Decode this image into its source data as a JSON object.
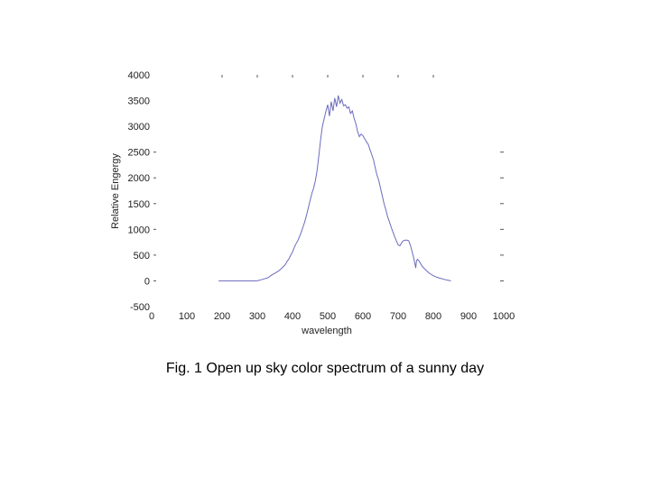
{
  "chart_data": {
    "type": "line",
    "xlabel": "wavelength",
    "ylabel": "Relative Engergy",
    "xlim": [
      0,
      1000
    ],
    "ylim": [
      -500,
      4000
    ],
    "xticks": [
      "0",
      "100",
      "200",
      "300",
      "400",
      "500",
      "600",
      "700",
      "800",
      "900",
      "1000"
    ],
    "yticks": [
      "-500",
      "0",
      "500",
      "1000",
      "1500",
      "2000",
      "2500",
      "3000",
      "3500",
      "4000"
    ],
    "grid": false,
    "line_color": "#6b6bbf",
    "series": [
      {
        "x": [
          190,
          200,
          220,
          250,
          270,
          280,
          290,
          300,
          310,
          320,
          330,
          340,
          350,
          360,
          370,
          380,
          385,
          390,
          395,
          400,
          405,
          410,
          415,
          420,
          425,
          430,
          435,
          440,
          445,
          450,
          455,
          460,
          465,
          470,
          475,
          480,
          485,
          490,
          495,
          500,
          505,
          510,
          515,
          520,
          525,
          530,
          535,
          540,
          545,
          550,
          555,
          560,
          565,
          570,
          575,
          580,
          585,
          590,
          595,
          600,
          605,
          610,
          615,
          620,
          625,
          630,
          635,
          640,
          645,
          650,
          655,
          660,
          665,
          670,
          675,
          680,
          685,
          690,
          695,
          700,
          705,
          710,
          715,
          720,
          725,
          730,
          735,
          740,
          745,
          750,
          752,
          755,
          760,
          765,
          770,
          780,
          790,
          800,
          810,
          820,
          830,
          840,
          850
        ],
        "y": [
          0,
          0,
          0,
          0,
          0,
          0,
          0,
          0,
          20,
          40,
          60,
          110,
          150,
          190,
          250,
          320,
          380,
          430,
          500,
          560,
          650,
          720,
          780,
          860,
          950,
          1050,
          1150,
          1280,
          1420,
          1560,
          1700,
          1800,
          1950,
          2150,
          2450,
          2750,
          3000,
          3150,
          3300,
          3420,
          3200,
          3480,
          3300,
          3550,
          3380,
          3600,
          3450,
          3520,
          3400,
          3420,
          3350,
          3380,
          3250,
          3300,
          3150,
          3050,
          2900,
          2800,
          2850,
          2820,
          2760,
          2700,
          2650,
          2550,
          2450,
          2350,
          2200,
          2050,
          1950,
          1800,
          1650,
          1500,
          1380,
          1250,
          1150,
          1050,
          950,
          860,
          780,
          700,
          680,
          740,
          780,
          790,
          790,
          780,
          690,
          560,
          420,
          250,
          380,
          420,
          380,
          320,
          270,
          200,
          140,
          100,
          70,
          50,
          30,
          15,
          0
        ]
      }
    ]
  },
  "caption": "Fig. 1 Open up sky color spectrum of a sunny day"
}
